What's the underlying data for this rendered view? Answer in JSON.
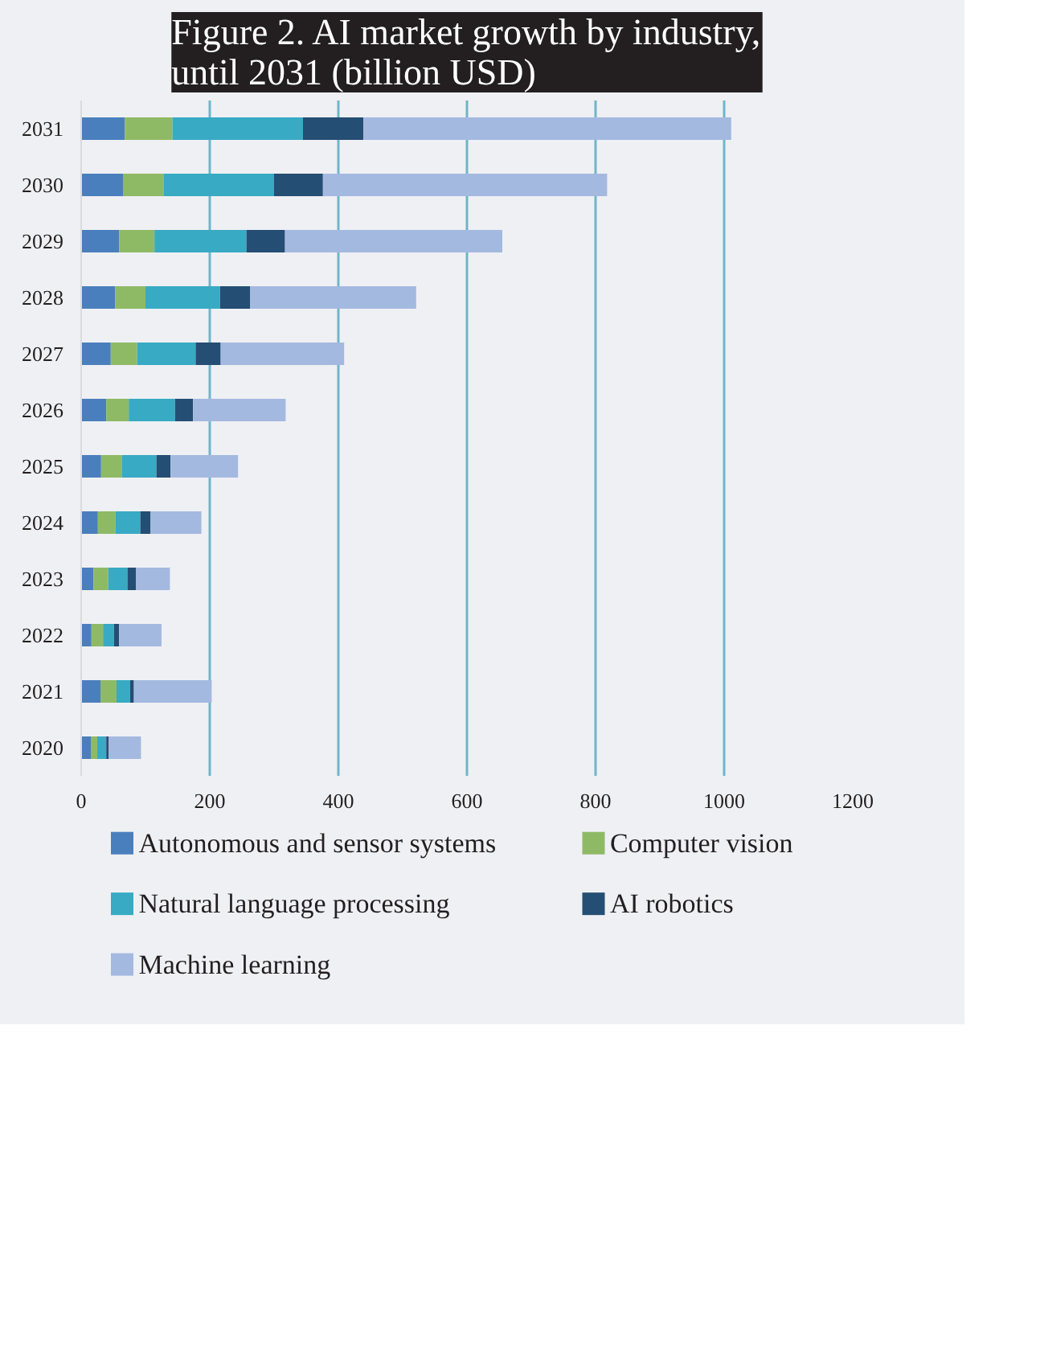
{
  "chart_data": {
    "type": "bar",
    "orientation": "horizontal",
    "stacked": true,
    "title": "Figure 2. AI market growth by industry, until 2031 (billion USD)",
    "categories": [
      "2031",
      "2030",
      "2029",
      "2028",
      "2027",
      "2026",
      "2025",
      "2024",
      "2023",
      "2022",
      "2021",
      "2020"
    ],
    "series": [
      {
        "name": "Autonomous and sensor systems",
        "color": "#4a7fbd",
        "values": [
          68,
          65,
          59,
          53,
          46,
          39,
          31,
          26,
          19,
          16,
          30,
          15
        ]
      },
      {
        "name": "Computer vision",
        "color": "#8fba65",
        "values": [
          74,
          63,
          55,
          47,
          41,
          35,
          32,
          27,
          23,
          18,
          25,
          10
        ]
      },
      {
        "name": "Natural language processing",
        "color": "#38aac4",
        "values": [
          203,
          172,
          143,
          116,
          91,
          72,
          54,
          39,
          30,
          17,
          21,
          14
        ]
      },
      {
        "name": "AI robotics",
        "color": "#254e74",
        "values": [
          94,
          76,
          60,
          47,
          39,
          28,
          22,
          16,
          13,
          8,
          6,
          4
        ]
      },
      {
        "name": "Machine learning",
        "color": "#a4b9e0",
        "values": [
          572,
          442,
          338,
          258,
          192,
          144,
          105,
          79,
          53,
          66,
          121,
          50
        ]
      }
    ],
    "xlim": [
      0,
      1200
    ],
    "xticks": [
      0,
      200,
      400,
      600,
      800,
      1000,
      1200
    ],
    "grid": "x",
    "legend": "bottom"
  }
}
